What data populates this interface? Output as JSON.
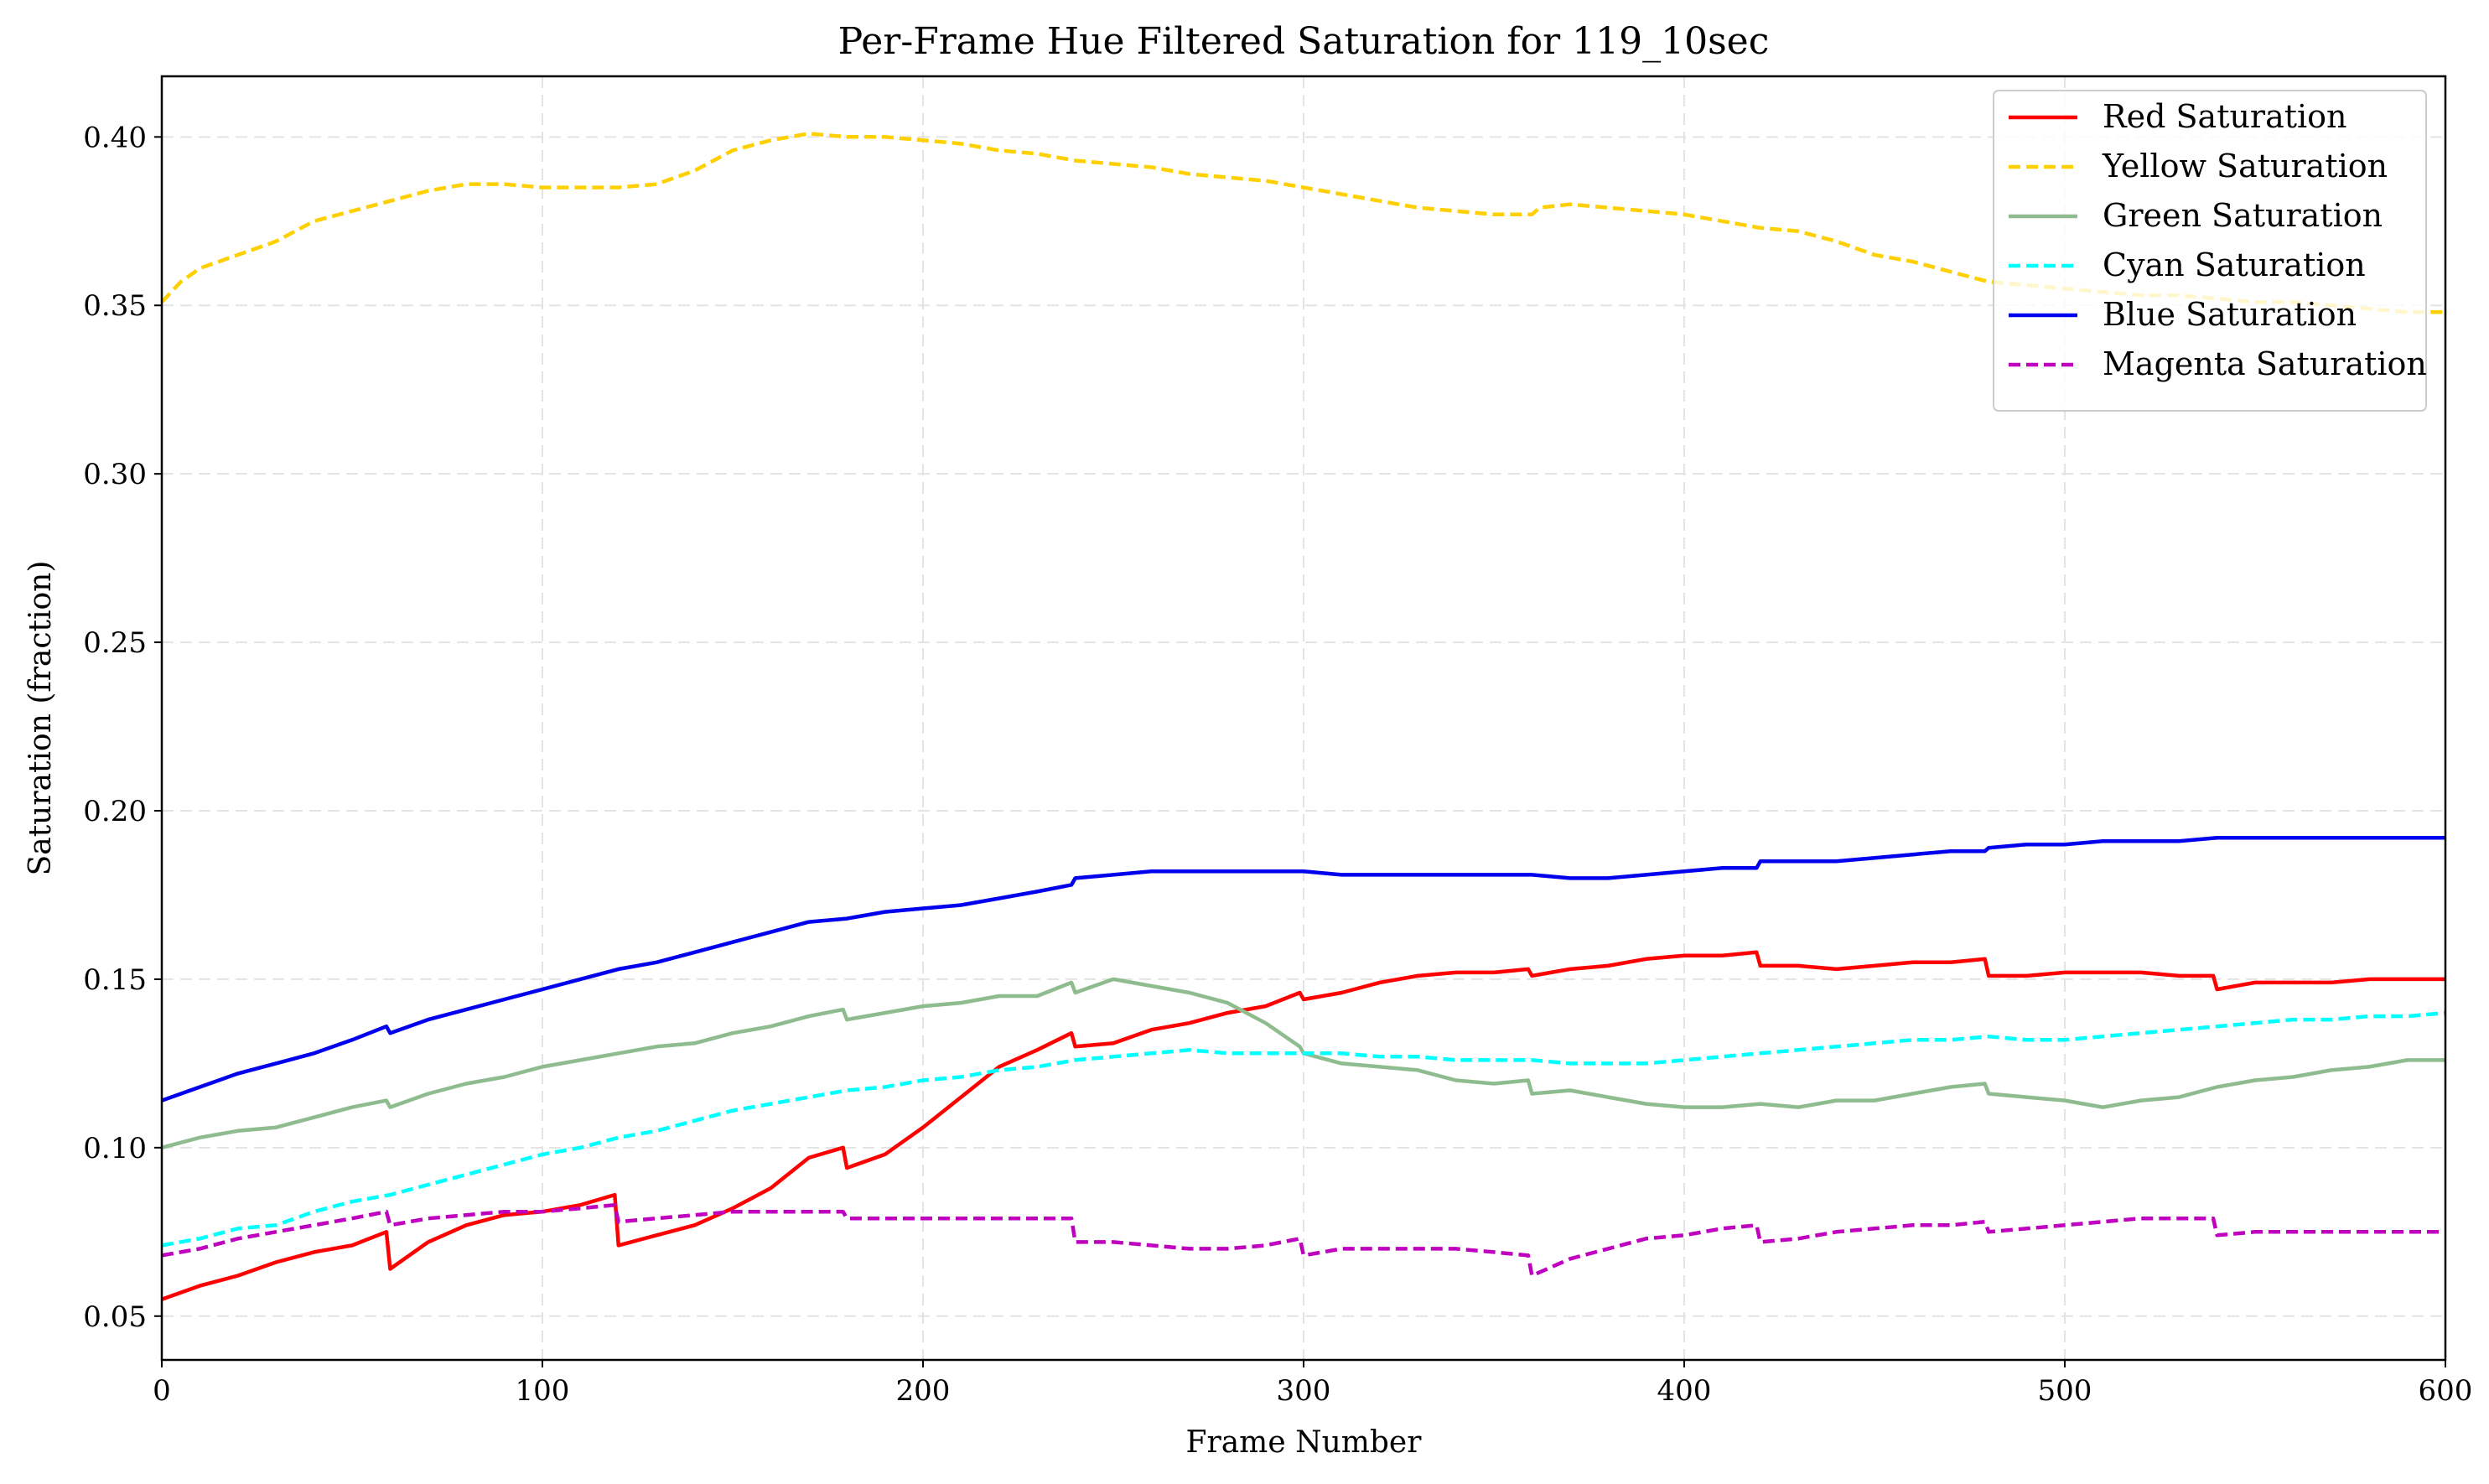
{
  "chart_data": {
    "type": "line",
    "title": "Per-Frame Hue Filtered Saturation for 119_10sec",
    "xlabel": "Frame Number",
    "ylabel": "Saturation (fraction)",
    "xlim": [
      0,
      600
    ],
    "ylim": [
      0.037,
      0.418
    ],
    "xticks": [
      0,
      100,
      200,
      300,
      400,
      500,
      600
    ],
    "xtick_labels": [
      "0",
      "100",
      "200",
      "300",
      "400",
      "500",
      "600"
    ],
    "yticks": [
      0.05,
      0.1,
      0.15,
      0.2,
      0.25,
      0.3,
      0.35,
      0.4
    ],
    "ytick_labels": [
      "0.05",
      "0.10",
      "0.15",
      "0.20",
      "0.25",
      "0.30",
      "0.35",
      "0.40"
    ],
    "grid": true,
    "legend_position": "top-right",
    "series": [
      {
        "name": "Red Saturation",
        "color": "#ff0000",
        "style": "solid",
        "x": [
          0,
          10,
          20,
          30,
          40,
          50,
          59,
          60,
          70,
          80,
          90,
          100,
          110,
          119,
          120,
          130,
          140,
          150,
          160,
          170,
          179,
          180,
          190,
          200,
          210,
          220,
          230,
          239,
          240,
          250,
          260,
          270,
          280,
          290,
          299,
          300,
          310,
          320,
          330,
          340,
          350,
          359,
          360,
          370,
          380,
          390,
          400,
          410,
          419,
          420,
          430,
          440,
          450,
          460,
          470,
          479,
          480,
          490,
          500,
          510,
          520,
          530,
          539,
          540,
          550,
          560,
          570,
          580,
          590,
          600
        ],
        "values": [
          0.055,
          0.059,
          0.062,
          0.066,
          0.069,
          0.071,
          0.075,
          0.064,
          0.072,
          0.077,
          0.08,
          0.081,
          0.083,
          0.086,
          0.071,
          0.074,
          0.077,
          0.082,
          0.088,
          0.097,
          0.1,
          0.094,
          0.098,
          0.106,
          0.115,
          0.124,
          0.129,
          0.134,
          0.13,
          0.131,
          0.135,
          0.137,
          0.14,
          0.142,
          0.146,
          0.144,
          0.146,
          0.149,
          0.151,
          0.152,
          0.152,
          0.153,
          0.151,
          0.153,
          0.154,
          0.156,
          0.157,
          0.157,
          0.158,
          0.154,
          0.154,
          0.153,
          0.154,
          0.155,
          0.155,
          0.156,
          0.151,
          0.151,
          0.152,
          0.152,
          0.152,
          0.151,
          0.151,
          0.147,
          0.149,
          0.149,
          0.149,
          0.15,
          0.15,
          0.15
        ]
      },
      {
        "name": "Yellow Saturation",
        "color": "#ffd000",
        "style": "dashed",
        "x": [
          0,
          5,
          10,
          20,
          30,
          40,
          50,
          60,
          70,
          80,
          90,
          100,
          110,
          120,
          130,
          140,
          150,
          160,
          170,
          180,
          190,
          200,
          210,
          220,
          230,
          240,
          250,
          260,
          270,
          280,
          290,
          300,
          310,
          320,
          330,
          340,
          350,
          360,
          362,
          370,
          380,
          390,
          400,
          410,
          420,
          430,
          440,
          450,
          460,
          470,
          480,
          490,
          500,
          510,
          520,
          530,
          540,
          550,
          560,
          570,
          580,
          590,
          600
        ],
        "values": [
          0.351,
          0.357,
          0.361,
          0.365,
          0.369,
          0.375,
          0.378,
          0.381,
          0.384,
          0.386,
          0.386,
          0.385,
          0.385,
          0.385,
          0.386,
          0.39,
          0.396,
          0.399,
          0.401,
          0.4,
          0.4,
          0.399,
          0.398,
          0.396,
          0.395,
          0.393,
          0.392,
          0.391,
          0.389,
          0.388,
          0.387,
          0.385,
          0.383,
          0.381,
          0.379,
          0.378,
          0.377,
          0.377,
          0.379,
          0.38,
          0.379,
          0.378,
          0.377,
          0.375,
          0.373,
          0.372,
          0.369,
          0.365,
          0.363,
          0.36,
          0.357,
          0.356,
          0.355,
          0.354,
          0.353,
          0.353,
          0.352,
          0.351,
          0.351,
          0.35,
          0.349,
          0.348,
          0.348
        ]
      },
      {
        "name": "Green Saturation",
        "color": "#8fbc8f",
        "style": "solid",
        "x": [
          0,
          10,
          20,
          30,
          40,
          50,
          59,
          60,
          70,
          80,
          90,
          100,
          110,
          120,
          130,
          140,
          150,
          160,
          170,
          179,
          180,
          190,
          200,
          210,
          220,
          230,
          239,
          240,
          250,
          260,
          270,
          280,
          290,
          299,
          300,
          310,
          320,
          330,
          340,
          350,
          359,
          360,
          370,
          380,
          390,
          400,
          410,
          420,
          430,
          440,
          450,
          460,
          470,
          479,
          480,
          490,
          500,
          510,
          520,
          530,
          540,
          550,
          560,
          570,
          580,
          590,
          600
        ],
        "values": [
          0.1,
          0.103,
          0.105,
          0.106,
          0.109,
          0.112,
          0.114,
          0.112,
          0.116,
          0.119,
          0.121,
          0.124,
          0.126,
          0.128,
          0.13,
          0.131,
          0.134,
          0.136,
          0.139,
          0.141,
          0.138,
          0.14,
          0.142,
          0.143,
          0.145,
          0.145,
          0.149,
          0.146,
          0.15,
          0.148,
          0.146,
          0.143,
          0.137,
          0.13,
          0.128,
          0.125,
          0.124,
          0.123,
          0.12,
          0.119,
          0.12,
          0.116,
          0.117,
          0.115,
          0.113,
          0.112,
          0.112,
          0.113,
          0.112,
          0.114,
          0.114,
          0.116,
          0.118,
          0.119,
          0.116,
          0.115,
          0.114,
          0.112,
          0.114,
          0.115,
          0.118,
          0.12,
          0.121,
          0.123,
          0.124,
          0.126,
          0.126
        ]
      },
      {
        "name": "Cyan Saturation",
        "color": "#00ffff",
        "style": "dashed",
        "x": [
          0,
          10,
          20,
          30,
          40,
          50,
          60,
          70,
          80,
          90,
          100,
          110,
          120,
          130,
          140,
          150,
          160,
          170,
          180,
          190,
          200,
          210,
          220,
          230,
          240,
          250,
          260,
          270,
          280,
          290,
          300,
          310,
          320,
          330,
          340,
          350,
          360,
          370,
          380,
          390,
          400,
          410,
          420,
          430,
          440,
          450,
          460,
          470,
          480,
          490,
          500,
          510,
          520,
          530,
          540,
          550,
          560,
          570,
          580,
          590,
          600
        ],
        "values": [
          0.071,
          0.073,
          0.076,
          0.077,
          0.081,
          0.084,
          0.086,
          0.089,
          0.092,
          0.095,
          0.098,
          0.1,
          0.103,
          0.105,
          0.108,
          0.111,
          0.113,
          0.115,
          0.117,
          0.118,
          0.12,
          0.121,
          0.123,
          0.124,
          0.126,
          0.127,
          0.128,
          0.129,
          0.128,
          0.128,
          0.128,
          0.128,
          0.127,
          0.127,
          0.126,
          0.126,
          0.126,
          0.125,
          0.125,
          0.125,
          0.126,
          0.127,
          0.128,
          0.129,
          0.13,
          0.131,
          0.132,
          0.132,
          0.133,
          0.132,
          0.132,
          0.133,
          0.134,
          0.135,
          0.136,
          0.137,
          0.138,
          0.138,
          0.139,
          0.139,
          0.14
        ]
      },
      {
        "name": "Blue Saturation",
        "color": "#0000ee",
        "style": "solid",
        "x": [
          0,
          10,
          20,
          30,
          40,
          50,
          59,
          60,
          70,
          80,
          90,
          100,
          110,
          120,
          130,
          140,
          150,
          160,
          170,
          180,
          190,
          200,
          210,
          220,
          230,
          239,
          240,
          250,
          260,
          270,
          280,
          290,
          300,
          310,
          320,
          330,
          340,
          350,
          360,
          370,
          380,
          390,
          400,
          410,
          419,
          420,
          430,
          440,
          450,
          460,
          470,
          479,
          480,
          490,
          500,
          510,
          520,
          530,
          540,
          550,
          560,
          570,
          580,
          590,
          600
        ],
        "values": [
          0.114,
          0.118,
          0.122,
          0.125,
          0.128,
          0.132,
          0.136,
          0.134,
          0.138,
          0.141,
          0.144,
          0.147,
          0.15,
          0.153,
          0.155,
          0.158,
          0.161,
          0.164,
          0.167,
          0.168,
          0.17,
          0.171,
          0.172,
          0.174,
          0.176,
          0.178,
          0.18,
          0.181,
          0.182,
          0.182,
          0.182,
          0.182,
          0.182,
          0.181,
          0.181,
          0.181,
          0.181,
          0.181,
          0.181,
          0.18,
          0.18,
          0.181,
          0.182,
          0.183,
          0.183,
          0.185,
          0.185,
          0.185,
          0.186,
          0.187,
          0.188,
          0.188,
          0.189,
          0.19,
          0.19,
          0.191,
          0.191,
          0.191,
          0.192,
          0.192,
          0.192,
          0.192,
          0.192,
          0.192,
          0.192
        ]
      },
      {
        "name": "Magenta Saturation",
        "color": "#bf00bf",
        "style": "dashed",
        "x": [
          0,
          10,
          20,
          30,
          40,
          50,
          59,
          60,
          70,
          80,
          90,
          100,
          110,
          119,
          120,
          130,
          140,
          150,
          160,
          170,
          179,
          180,
          190,
          200,
          210,
          220,
          230,
          239,
          240,
          250,
          260,
          270,
          280,
          290,
          299,
          300,
          310,
          320,
          330,
          340,
          350,
          359,
          360,
          370,
          380,
          390,
          400,
          410,
          419,
          420,
          430,
          440,
          450,
          460,
          470,
          479,
          480,
          490,
          500,
          510,
          520,
          530,
          539,
          540,
          550,
          560,
          570,
          580,
          590,
          600
        ],
        "values": [
          0.068,
          0.07,
          0.073,
          0.075,
          0.077,
          0.079,
          0.081,
          0.077,
          0.079,
          0.08,
          0.081,
          0.081,
          0.082,
          0.083,
          0.078,
          0.079,
          0.08,
          0.081,
          0.081,
          0.081,
          0.081,
          0.079,
          0.079,
          0.079,
          0.079,
          0.079,
          0.079,
          0.079,
          0.072,
          0.072,
          0.071,
          0.07,
          0.07,
          0.071,
          0.073,
          0.068,
          0.07,
          0.07,
          0.07,
          0.07,
          0.069,
          0.068,
          0.062,
          0.067,
          0.07,
          0.073,
          0.074,
          0.076,
          0.077,
          0.072,
          0.073,
          0.075,
          0.076,
          0.077,
          0.077,
          0.078,
          0.075,
          0.076,
          0.077,
          0.078,
          0.079,
          0.079,
          0.079,
          0.074,
          0.075,
          0.075,
          0.075,
          0.075,
          0.075,
          0.075
        ]
      }
    ]
  }
}
